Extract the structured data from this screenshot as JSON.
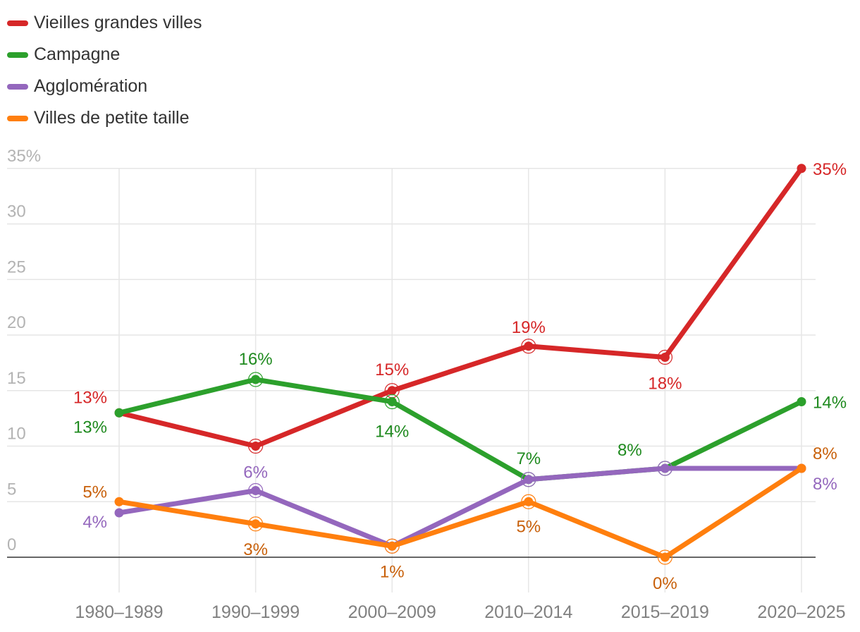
{
  "chart_data": {
    "type": "line",
    "title": "",
    "xlabel": "",
    "ylabel": "",
    "categories": [
      "1980–1989",
      "1990–1999",
      "2000–2009",
      "2010–2014",
      "2015–2019",
      "2020–2025"
    ],
    "ylim": [
      0,
      35
    ],
    "yticks": [
      "0",
      "5",
      "10",
      "15",
      "20",
      "25",
      "30",
      "35%"
    ],
    "grid": true,
    "legend_position": "top-left",
    "series": [
      {
        "name": "Vieilles grandes villes",
        "color": "#d62728",
        "label_color": "#d62728",
        "values": [
          13,
          10,
          15,
          19,
          18,
          35
        ],
        "labels": [
          "13%",
          "",
          "15%",
          "19%",
          "18%",
          "35%"
        ]
      },
      {
        "name": "Campagne",
        "color": "#2ca02c",
        "label_color": "#1f8a1f",
        "values": [
          13,
          16,
          14,
          7,
          8,
          14
        ],
        "labels": [
          "13%",
          "16%",
          "14%",
          "7%",
          "8%",
          "14%"
        ]
      },
      {
        "name": "Agglomération",
        "color": "#9467bd",
        "label_color": "#9467bd",
        "values": [
          4,
          6,
          1,
          7,
          8,
          8
        ],
        "labels": [
          "4%",
          "6%",
          "",
          "",
          "",
          "8%"
        ]
      },
      {
        "name": "Villes de petite taille",
        "color": "#ff7f0e",
        "label_color": "#c8600a",
        "values": [
          5,
          3,
          1,
          5,
          0,
          8
        ],
        "labels": [
          "5%",
          "3%",
          "1%",
          "5%",
          "0%",
          "8%"
        ]
      }
    ]
  }
}
